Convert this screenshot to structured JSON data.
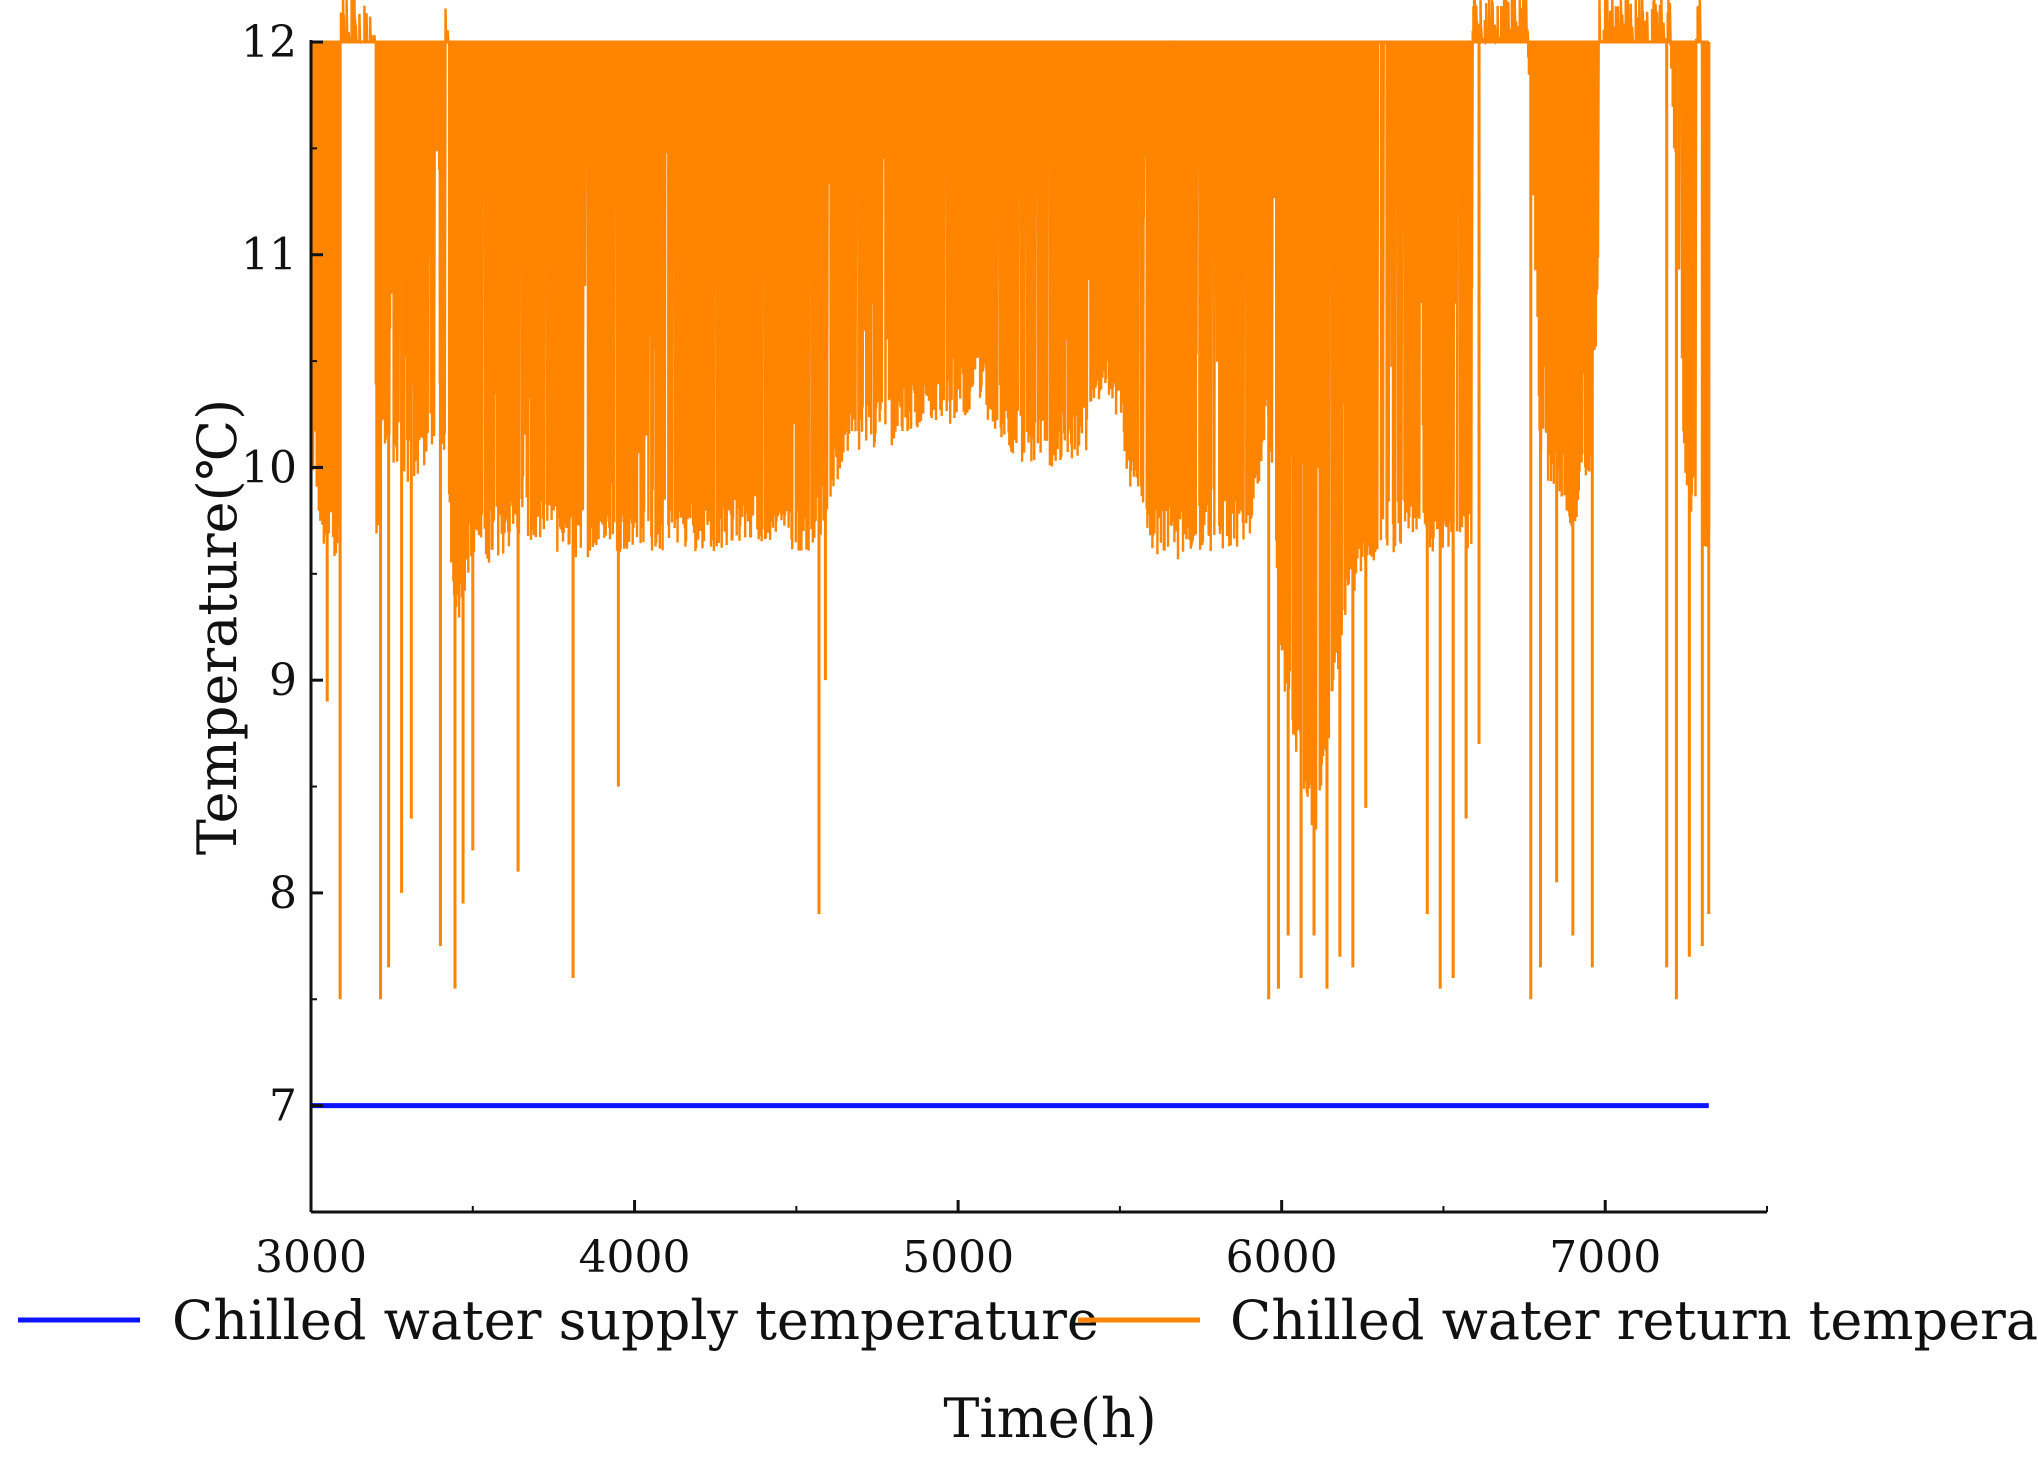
{
  "chart_data": {
    "type": "line",
    "title": "",
    "xlabel": "Time(h)",
    "ylabel": "Temperature(℃)",
    "xlim": [
      3000,
      7500
    ],
    "ylim": [
      6.5,
      12
    ],
    "x_ticks": [
      3000,
      4000,
      5000,
      6000,
      7000
    ],
    "x_tick_labels": [
      "3000",
      "4000",
      "5000",
      "6000",
      "7000"
    ],
    "y_ticks": [
      7,
      8,
      9,
      10,
      11,
      12
    ],
    "y_tick_labels": [
      "7",
      "8",
      "9",
      "10",
      "11",
      "12"
    ],
    "grid": false,
    "legend_position": "bottom",
    "series": [
      {
        "name": "Chilled water supply temperature",
        "color": "#0a14ff",
        "style": "constant",
        "x": [
          3000,
          7320
        ],
        "values": [
          7,
          7
        ]
      },
      {
        "name": "Chilled water return temperature",
        "color": "#ff8400",
        "style": "oscillating-envelope",
        "x_range": [
          3000,
          7320
        ],
        "upper_value": 12,
        "lower_envelope": {
          "x": [
            3000,
            3050,
            3090,
            3200,
            3220,
            3300,
            3350,
            3400,
            3450,
            3500,
            3550,
            3600,
            3650,
            3700,
            3800,
            3900,
            4000,
            4100,
            4200,
            4300,
            4400,
            4500,
            4550,
            4600,
            4650,
            4700,
            4750,
            4800,
            4900,
            5000,
            5050,
            5100,
            5150,
            5200,
            5300,
            5400,
            5450,
            5500,
            5550,
            5600,
            5700,
            5800,
            5900,
            5940,
            5960,
            6000,
            6100,
            6200,
            6300,
            6400,
            6420,
            6480,
            6550,
            6600,
            6660,
            6760,
            6800,
            6900,
            6960,
            7000,
            7100,
            7200,
            7250,
            7300,
            7320
          ],
          "values": [
            9.8,
            9.55,
            9.6,
            9.5,
            10.1,
            9.9,
            10.0,
            10.2,
            9.2,
            9.6,
            9.55,
            9.6,
            9.65,
            9.6,
            9.55,
            9.6,
            9.6,
            9.6,
            9.6,
            9.6,
            9.65,
            9.6,
            9.6,
            9.75,
            10.05,
            10.05,
            10.1,
            10.1,
            10.2,
            10.2,
            10.3,
            10.2,
            10.1,
            10.0,
            10.0,
            10.05,
            10.4,
            10.1,
            9.8,
            9.6,
            9.55,
            9.6,
            9.6,
            10.0,
            10.1,
            9.0,
            8.2,
            9.3,
            9.6,
            9.6,
            9.6,
            9.6,
            9.6,
            9.6,
            12.0,
            12.0,
            10.0,
            9.7,
            10.0,
            12.0,
            12.0,
            12.0,
            9.8,
            9.6,
            9.6
          ]
        },
        "deep_dips": {
          "x": [
            3050,
            3090,
            3215,
            3240,
            3280,
            3310,
            3400,
            3445,
            3470,
            3500,
            3640,
            3810,
            3950,
            4570,
            4590,
            5960,
            5990,
            6020,
            6060,
            6100,
            6140,
            6180,
            6220,
            6260,
            6450,
            6490,
            6530,
            6570,
            6610,
            6770,
            6800,
            6850,
            6900,
            6960,
            7190,
            7220,
            7260,
            7300,
            7320
          ],
          "values": [
            8.9,
            7.5,
            7.5,
            7.65,
            8.0,
            8.35,
            7.75,
            7.55,
            7.95,
            8.2,
            8.1,
            7.6,
            8.5,
            7.9,
            9.0,
            7.5,
            7.55,
            7.8,
            7.6,
            7.8,
            7.55,
            7.7,
            7.65,
            8.4,
            7.9,
            7.55,
            7.6,
            8.35,
            8.7,
            7.5,
            7.65,
            8.05,
            7.8,
            7.65,
            7.65,
            7.5,
            7.7,
            7.75,
            7.9
          ]
        },
        "gaps_at_max": [
          [
            3090,
            3200
          ],
          [
            3415,
            3425
          ],
          [
            6590,
            6740
          ],
          [
            6980,
            7180
          ],
          [
            7280,
            7300
          ]
        ]
      }
    ]
  }
}
